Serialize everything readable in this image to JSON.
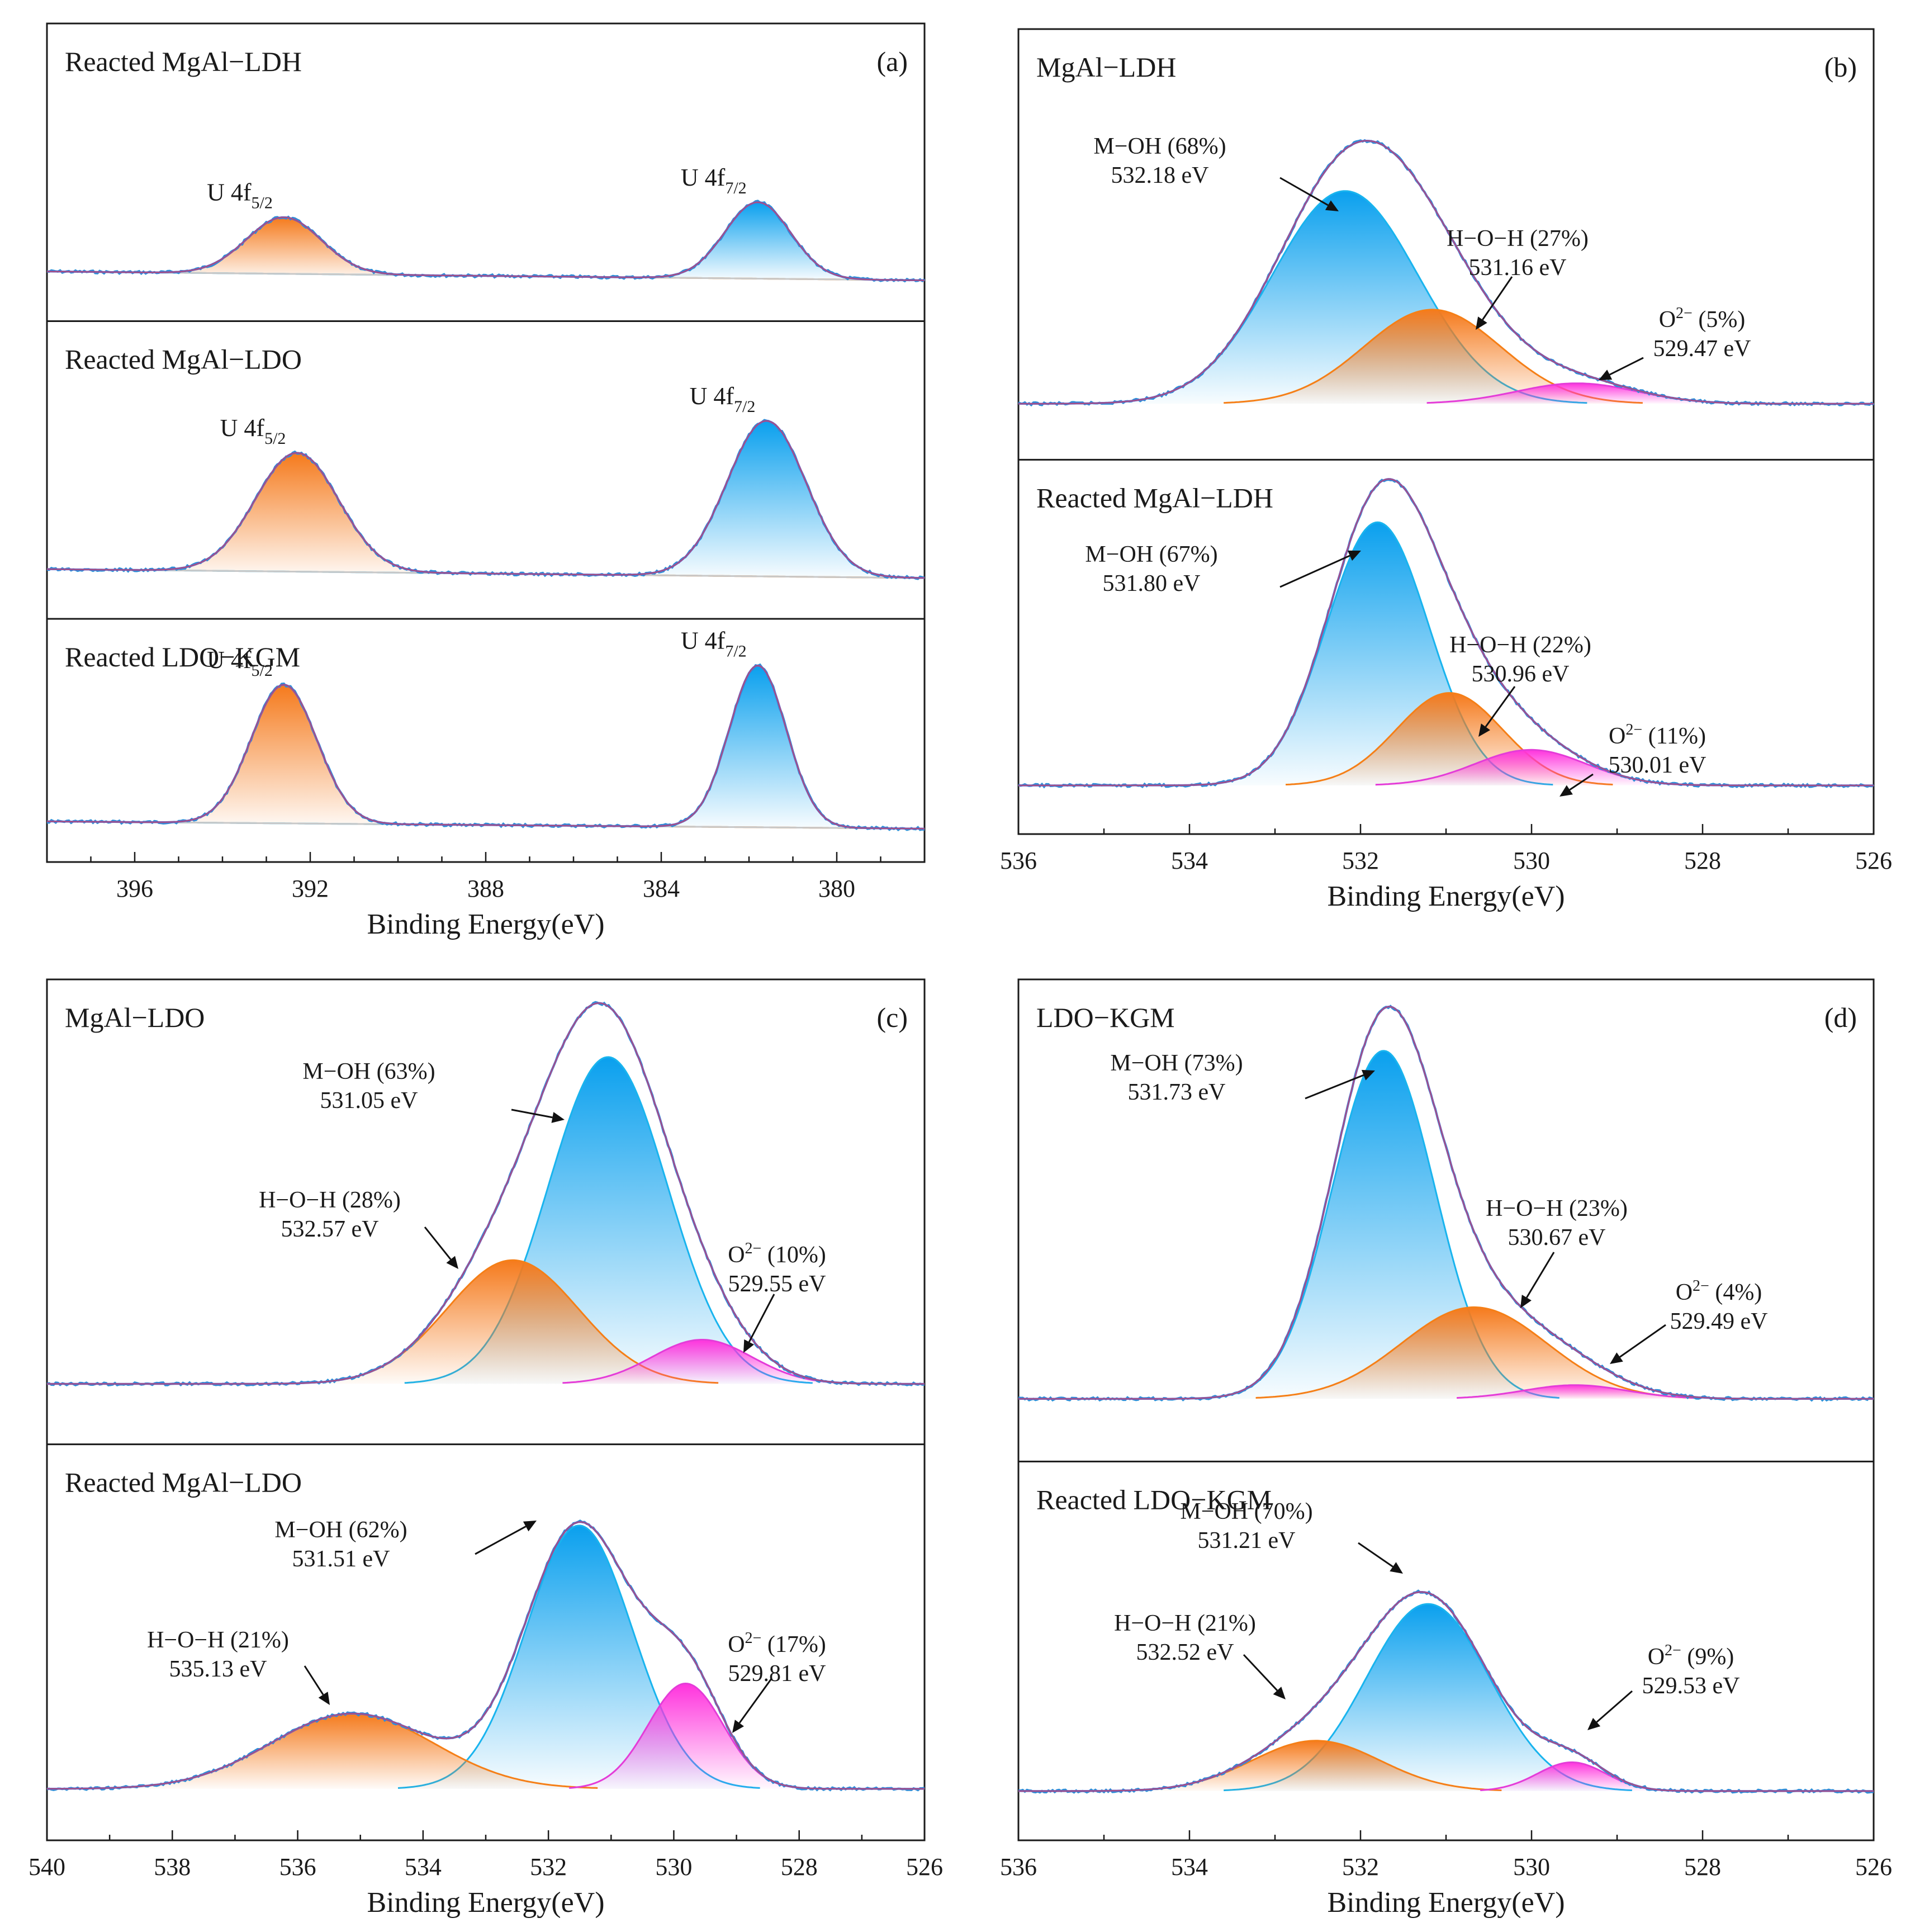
{
  "chart_data": [
    {
      "type": "line",
      "panel_label": "(a)",
      "chart_kind": "XPS U 4f spectra (stacked)",
      "xlabel": "Binding Energy(eV)",
      "xlim": [
        398,
        378
      ],
      "x_ticks": [
        "396",
        "392",
        "388",
        "384",
        "380"
      ],
      "subplots": [
        {
          "title": "Reacted MgAl−LDH",
          "background_start": 0.26,
          "background_end": 0.05,
          "peaks": [
            {
              "label": "U 4f",
              "sub": "5/2",
              "center": 392.6,
              "height": 0.2,
              "sigma": 0.85,
              "color": "orange"
            },
            {
              "label": "U 4f",
              "sub": "7/2",
              "center": 381.8,
              "height": 0.27,
              "sigma": 0.75,
              "color": "blue"
            }
          ]
        },
        {
          "title": "Reacted MgAl−LDO",
          "background_start": 0.26,
          "background_end": 0.05,
          "peaks": [
            {
              "label": "U 4f",
              "sub": "5/2",
              "center": 392.3,
              "height": 0.42,
              "sigma": 0.95,
              "color": "orange"
            },
            {
              "label": "U 4f",
              "sub": "7/2",
              "center": 381.6,
              "height": 0.55,
              "sigma": 0.9,
              "color": "blue"
            }
          ]
        },
        {
          "title": "Reacted LDO−KGM",
          "background_start": 0.26,
          "background_end": 0.05,
          "peaks": [
            {
              "label": "U 4f",
              "sub": "5/2",
              "center": 392.6,
              "height": 0.6,
              "sigma": 0.75,
              "color": "orange"
            },
            {
              "label": "U 4f",
              "sub": "7/2",
              "center": 381.8,
              "height": 0.7,
              "sigma": 0.65,
              "color": "blue"
            }
          ]
        }
      ]
    },
    {
      "type": "line",
      "panel_label": "(b)",
      "chart_kind": "XPS O 1s spectra (stacked)",
      "xlabel": "Binding Energy(eV)",
      "xlim": [
        536,
        526
      ],
      "x_ticks": [
        "536",
        "534",
        "532",
        "530",
        "528",
        "526"
      ],
      "subplots": [
        {
          "title": "MgAl−LDH",
          "peaks": [
            {
              "name": "M−OH",
              "percent": "68%",
              "energy": "532.18 eV",
              "center": 532.18,
              "height": 0.52,
              "sigma": 0.85,
              "color": "blue",
              "label": "M−OH (68%)",
              "value_label": "532.18 eV"
            },
            {
              "name": "H−O−H",
              "percent": "27%",
              "energy": "531.16 eV",
              "center": 531.16,
              "height": 0.23,
              "sigma": 0.8,
              "color": "orange",
              "label": "H−O−H (27%)",
              "value_label": "531.16 eV"
            },
            {
              "name": "O2−",
              "percent": "5%",
              "energy": "529.47 eV",
              "center": 529.47,
              "height": 0.05,
              "sigma": 0.7,
              "color": "magenta",
              "label_prefix": "O",
              "label_sup": "2−",
              "label_suffix": " (5%)",
              "value_label": "529.47 eV"
            }
          ]
        },
        {
          "title": "Reacted MgAl−LDH",
          "peaks": [
            {
              "name": "M−OH",
              "percent": "67%",
              "energy": "531.80 eV",
              "center": 531.8,
              "height": 0.74,
              "sigma": 0.6,
              "color": "blue",
              "label": "M−OH (67%)",
              "value_label": "531.80 eV"
            },
            {
              "name": "H−O−H",
              "percent": "22%",
              "energy": "530.96 eV",
              "center": 530.96,
              "height": 0.26,
              "sigma": 0.62,
              "color": "orange",
              "label": "H−O−H (22%)",
              "value_label": "530.96 eV"
            },
            {
              "name": "O2−",
              "percent": "11%",
              "energy": "530.01 eV",
              "center": 530.01,
              "height": 0.1,
              "sigma": 0.65,
              "color": "magenta",
              "label_prefix": "O",
              "label_sup": "2−",
              "label_suffix": " (11%)",
              "value_label": "530.01 eV"
            }
          ]
        }
      ]
    },
    {
      "type": "line",
      "panel_label": "(c)",
      "chart_kind": "XPS O 1s spectra (stacked)",
      "xlabel": "Binding Energy(eV)",
      "xlim": [
        540,
        526
      ],
      "x_ticks": [
        "540",
        "538",
        "536",
        "534",
        "532",
        "530",
        "528",
        "526"
      ],
      "subplots": [
        {
          "title": "MgAl−LDO",
          "peaks": [
            {
              "name": "M−OH",
              "percent": "63%",
              "energy": "531.05 eV",
              "center": 531.05,
              "height": 0.74,
              "sigma": 0.95,
              "color": "blue",
              "label": "M−OH (63%)",
              "value_label": "531.05 eV"
            },
            {
              "name": "H−O−H",
              "percent": "28%",
              "energy": "532.57 eV",
              "center": 532.57,
              "height": 0.28,
              "sigma": 1.05,
              "color": "orange",
              "label": "H−O−H (28%)",
              "value_label": "532.57 eV"
            },
            {
              "name": "O2−",
              "percent": "10%",
              "energy": "529.55 eV",
              "center": 529.55,
              "height": 0.1,
              "sigma": 0.8,
              "color": "magenta",
              "label_prefix": "O",
              "label_sup": "2−",
              "label_suffix": " (10%)",
              "value_label": "529.55 eV"
            }
          ]
        },
        {
          "title": "Reacted MgAl−LDO",
          "peaks": [
            {
              "name": "M−OH",
              "percent": "62%",
              "energy": "531.51 eV",
              "center": 531.51,
              "height": 0.7,
              "sigma": 0.85,
              "color": "blue",
              "label": "M−OH (62%)",
              "value_label": "531.51 eV"
            },
            {
              "name": "H−O−H",
              "percent": "21%",
              "energy": "535.13 eV",
              "center": 535.13,
              "height": 0.2,
              "sigma": 1.3,
              "color": "orange",
              "label": "H−O−H (21%)",
              "value_label": "535.13 eV"
            },
            {
              "name": "O2−",
              "percent": "17%",
              "energy": "529.81 eV",
              "center": 529.81,
              "height": 0.28,
              "sigma": 0.6,
              "color": "magenta",
              "label_prefix": "O",
              "label_sup": "2−",
              "label_suffix": " (17%)",
              "value_label": "529.81 eV"
            }
          ]
        }
      ]
    },
    {
      "type": "line",
      "panel_label": "(d)",
      "chart_kind": "XPS O 1s spectra (stacked)",
      "xlabel": "Binding Energy(eV)",
      "xlim": [
        536,
        526
      ],
      "x_ticks": [
        "536",
        "534",
        "532",
        "530",
        "528",
        "526"
      ],
      "subplots": [
        {
          "title": "LDO−KGM",
          "peaks": [
            {
              "name": "M−OH",
              "percent": "73%",
              "energy": "531.73 eV",
              "center": 531.73,
              "height": 0.76,
              "sigma": 0.6,
              "color": "blue",
              "label": "M−OH (73%)",
              "value_label": "531.73 eV"
            },
            {
              "name": "H−O−H",
              "percent": "23%",
              "energy": "530.67 eV",
              "center": 530.67,
              "height": 0.2,
              "sigma": 0.85,
              "color": "orange",
              "label": "H−O−H (23%)",
              "value_label": "530.67 eV"
            },
            {
              "name": "O2−",
              "percent": "4%",
              "energy": "529.49 eV",
              "center": 529.49,
              "height": 0.03,
              "sigma": 0.6,
              "color": "magenta",
              "label_prefix": "O",
              "label_sup": "2−",
              "label_suffix": " (4%)",
              "value_label": "529.49 eV"
            }
          ]
        },
        {
          "title": "Reacted LDO−KGM",
          "peaks": [
            {
              "name": "M−OH",
              "percent": "70%",
              "energy": "531.21 eV",
              "center": 531.21,
              "height": 0.52,
              "sigma": 0.72,
              "color": "blue",
              "label": "M−OH (70%)",
              "value_label": "531.21 eV"
            },
            {
              "name": "H−O−H",
              "percent": "21%",
              "energy": "532.52 eV",
              "center": 532.52,
              "height": 0.14,
              "sigma": 0.75,
              "color": "orange",
              "label": "H−O−H (21%)",
              "value_label": "532.52 eV"
            },
            {
              "name": "O2−",
              "percent": "9%",
              "energy": "529.53 eV",
              "center": 529.53,
              "height": 0.08,
              "sigma": 0.4,
              "color": "magenta",
              "label_prefix": "O",
              "label_sup": "2−",
              "label_suffix": " (9%)",
              "value_label": "529.53 eV"
            }
          ]
        }
      ]
    }
  ],
  "colors": {
    "blue_fill": "#0aa0ee",
    "blue_line": "#19b4ee",
    "orange_fill": "#f57a1c",
    "orange_line": "#f57f17",
    "magenta_fill": "#ff33dd",
    "magenta_line": "#e43cd8",
    "envelope": "#6f63c4",
    "raw_data": "#2e8fd6",
    "background_line": "#c8c8c8",
    "axis": "#1a1a1a",
    "arrow": "#111111"
  }
}
